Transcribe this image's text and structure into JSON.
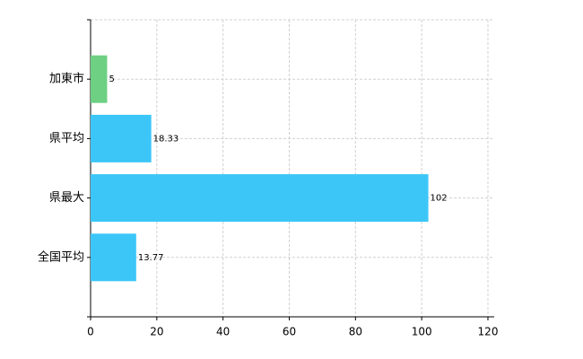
{
  "chart_data": {
    "type": "hbar",
    "categories": [
      "加東市",
      "県平均",
      "県最大",
      "全国平均"
    ],
    "values": [
      5,
      18.33,
      102,
      13.77
    ],
    "colors": [
      "#6dd083",
      "#3cc6f8",
      "#3cc6f8",
      "#3cc6f8"
    ],
    "xlim": [
      0,
      120
    ],
    "xticks": [
      0,
      20,
      40,
      60,
      80,
      100,
      120
    ],
    "grid": true
  }
}
